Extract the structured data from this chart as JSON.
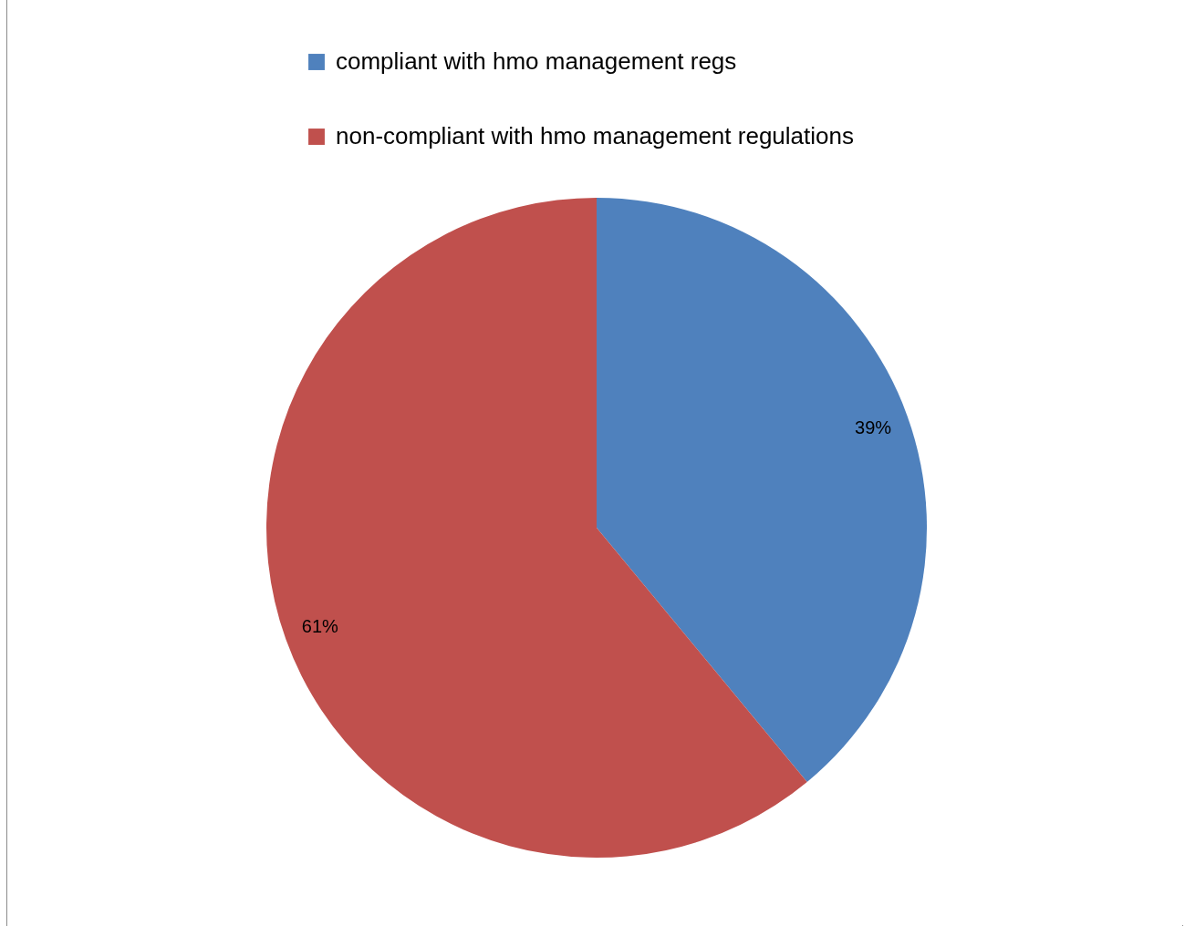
{
  "chart_data": {
    "type": "pie",
    "categories": [
      "compliant with hmo management regs",
      "non-compliant with hmo management regulations"
    ],
    "values": [
      39,
      61
    ],
    "colors": [
      "#4f81bd",
      "#c0504d"
    ],
    "value_labels": [
      "39%",
      "61%"
    ],
    "legend": "top"
  }
}
